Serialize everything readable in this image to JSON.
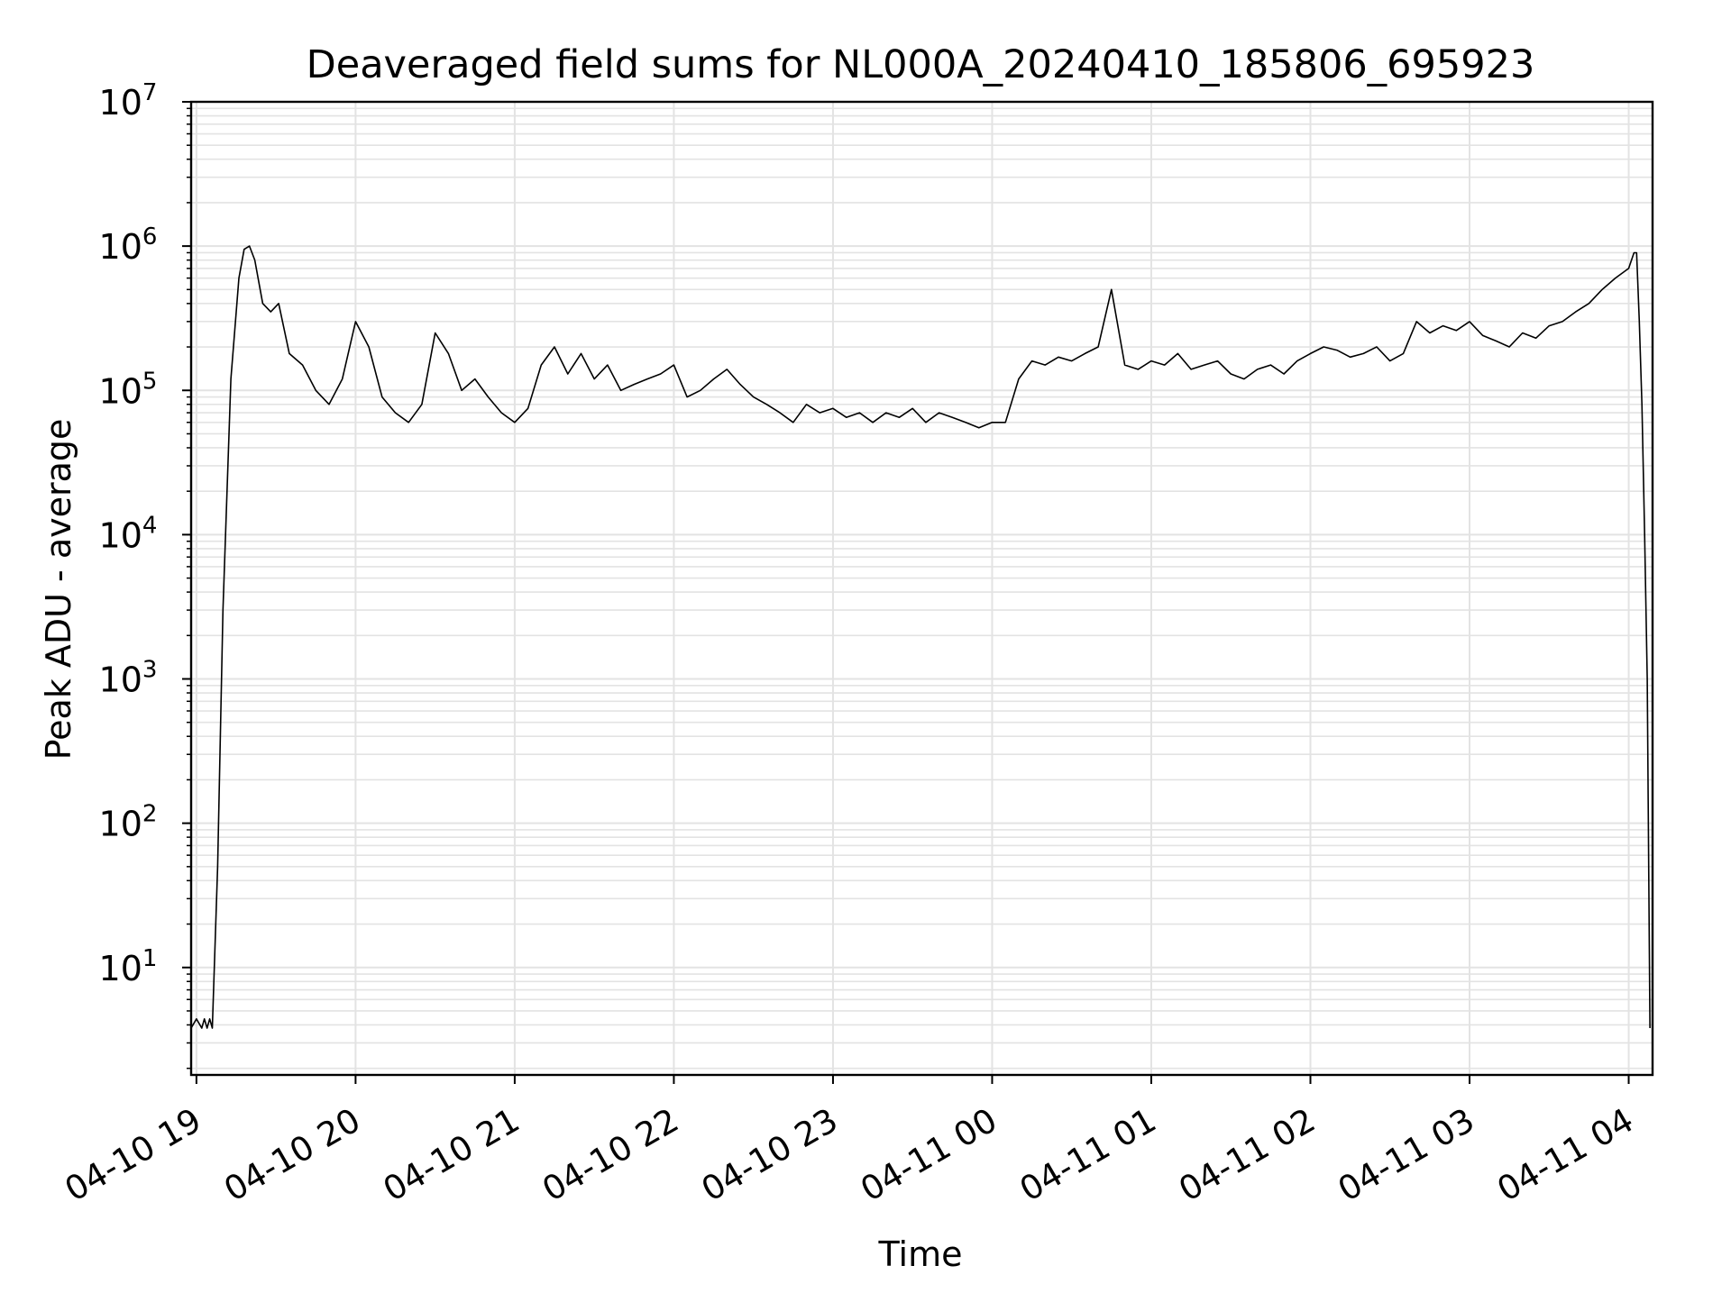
{
  "chart_data": {
    "type": "line",
    "title": "Deaveraged field sums for NL000A_20240410_185806_695923",
    "xlabel": "Time",
    "ylabel": "Peak ADU - average",
    "yscale": "log",
    "ylim": [
      1.8,
      10000000
    ],
    "xlim": [
      "04-10 18:58",
      "04-11 04:09"
    ],
    "grid": true,
    "legend": "none",
    "x_ticks": [
      "04-10 19",
      "04-10 20",
      "04-10 21",
      "04-10 22",
      "04-10 23",
      "04-11 00",
      "04-11 01",
      "04-11 02",
      "04-11 03",
      "04-11 04"
    ],
    "y_ticks": [
      {
        "base": "10",
        "exp": "1",
        "value": 10
      },
      {
        "base": "10",
        "exp": "2",
        "value": 100
      },
      {
        "base": "10",
        "exp": "3",
        "value": 1000
      },
      {
        "base": "10",
        "exp": "4",
        "value": 10000
      },
      {
        "base": "10",
        "exp": "5",
        "value": 100000
      },
      {
        "base": "10",
        "exp": "6",
        "value": 1000000
      },
      {
        "base": "10",
        "exp": "7",
        "value": 10000000
      }
    ],
    "series": [
      {
        "color": "#000000",
        "x": [
          "04-10 18:58",
          "04-10 19:00",
          "04-10 19:02",
          "04-10 19:03",
          "04-10 19:04",
          "04-10 19:05",
          "04-10 19:06",
          "04-10 19:08",
          "04-10 19:10",
          "04-10 19:13",
          "04-10 19:16",
          "04-10 19:18",
          "04-10 19:20",
          "04-10 19:22",
          "04-10 19:25",
          "04-10 19:28",
          "04-10 19:31",
          "04-10 19:35",
          "04-10 19:40",
          "04-10 19:45",
          "04-10 19:50",
          "04-10 19:55",
          "04-10 20:00",
          "04-10 20:05",
          "04-10 20:10",
          "04-10 20:15",
          "04-10 20:20",
          "04-10 20:25",
          "04-10 20:30",
          "04-10 20:35",
          "04-10 20:40",
          "04-10 20:45",
          "04-10 20:50",
          "04-10 20:55",
          "04-10 21:00",
          "04-10 21:05",
          "04-10 21:10",
          "04-10 21:15",
          "04-10 21:20",
          "04-10 21:25",
          "04-10 21:30",
          "04-10 21:35",
          "04-10 21:40",
          "04-10 21:45",
          "04-10 21:50",
          "04-10 21:55",
          "04-10 22:00",
          "04-10 22:05",
          "04-10 22:10",
          "04-10 22:15",
          "04-10 22:20",
          "04-10 22:25",
          "04-10 22:30",
          "04-10 22:35",
          "04-10 22:40",
          "04-10 22:45",
          "04-10 22:50",
          "04-10 22:55",
          "04-10 23:00",
          "04-10 23:05",
          "04-10 23:10",
          "04-10 23:15",
          "04-10 23:20",
          "04-10 23:25",
          "04-10 23:30",
          "04-10 23:35",
          "04-10 23:40",
          "04-10 23:45",
          "04-10 23:50",
          "04-10 23:55",
          "04-11 00:00",
          "04-11 00:05",
          "04-11 00:10",
          "04-11 00:15",
          "04-11 00:20",
          "04-11 00:25",
          "04-11 00:30",
          "04-11 00:35",
          "04-11 00:40",
          "04-11 00:45",
          "04-11 00:50",
          "04-11 00:55",
          "04-11 01:00",
          "04-11 01:05",
          "04-11 01:10",
          "04-11 01:15",
          "04-11 01:20",
          "04-11 01:25",
          "04-11 01:30",
          "04-11 01:35",
          "04-11 01:40",
          "04-11 01:45",
          "04-11 01:50",
          "04-11 01:55",
          "04-11 02:00",
          "04-11 02:05",
          "04-11 02:10",
          "04-11 02:15",
          "04-11 02:20",
          "04-11 02:25",
          "04-11 02:30",
          "04-11 02:35",
          "04-11 02:40",
          "04-11 02:45",
          "04-11 02:50",
          "04-11 02:55",
          "04-11 03:00",
          "04-11 03:05",
          "04-11 03:10",
          "04-11 03:15",
          "04-11 03:20",
          "04-11 03:25",
          "04-11 03:30",
          "04-11 03:35",
          "04-11 03:40",
          "04-11 03:45",
          "04-11 03:50",
          "04-11 03:55",
          "04-11 04:00",
          "04-11 04:02",
          "04-11 04:03",
          "04-11 04:04",
          "04-11 04:05",
          "04-11 04:06",
          "04-11 04:07",
          "04-11 04:08"
        ],
        "y": [
          3.8,
          4.4,
          3.8,
          4.4,
          3.8,
          4.4,
          3.8,
          50,
          3000,
          120000,
          600000,
          950000,
          1000000,
          800000,
          400000,
          350000,
          400000,
          180000,
          150000,
          100000,
          80000,
          120000,
          300000,
          200000,
          90000,
          70000,
          60000,
          80000,
          250000,
          180000,
          100000,
          120000,
          90000,
          70000,
          60000,
          75000,
          150000,
          200000,
          130000,
          180000,
          120000,
          150000,
          100000,
          110000,
          120000,
          130000,
          150000,
          90000,
          100000,
          120000,
          140000,
          110000,
          90000,
          80000,
          70000,
          60000,
          80000,
          70000,
          75000,
          65000,
          70000,
          60000,
          70000,
          65000,
          75000,
          60000,
          70000,
          65000,
          60000,
          55000,
          60000,
          60000,
          120000,
          160000,
          150000,
          170000,
          160000,
          180000,
          200000,
          500000,
          150000,
          140000,
          160000,
          150000,
          180000,
          140000,
          150000,
          160000,
          130000,
          120000,
          140000,
          150000,
          130000,
          160000,
          180000,
          200000,
          190000,
          170000,
          180000,
          200000,
          160000,
          180000,
          300000,
          250000,
          280000,
          260000,
          300000,
          240000,
          220000,
          200000,
          250000,
          230000,
          280000,
          300000,
          350000,
          400000,
          500000,
          600000,
          700000,
          900000,
          900000,
          300000,
          80000,
          10000,
          1000,
          3.8
        ]
      }
    ]
  }
}
